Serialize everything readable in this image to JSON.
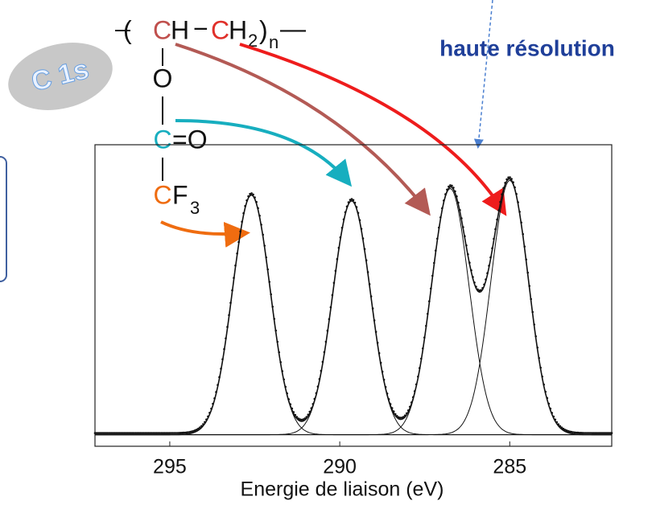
{
  "chart_data": {
    "type": "xps",
    "xlabel": "Energie de liaison (eV)",
    "xlim": [
      297.2,
      282
    ],
    "xticks": [
      295,
      290,
      285
    ],
    "ylim": [
      -4,
      100
    ],
    "peaks": {
      "centers": [
        292.6,
        289.65,
        286.75,
        285.0
      ],
      "heights": [
        82.7,
        80.7,
        84.9,
        87.7
      ],
      "fwhm": [
        1.3,
        1.3,
        1.3,
        1.3
      ]
    },
    "line_color": "#111111",
    "badge": "C 1s",
    "note": "haute résolution",
    "formula": {
      "open": "(",
      "c1": "C",
      "h1": "H",
      "dash": "−",
      "c2": "C",
      "h2": "H",
      "sub2": "2",
      "close": ")",
      "subn": "n",
      "end": "—",
      "o": "O",
      "c3": "C",
      "dbl": "=O",
      "c4": "C",
      "f": "F",
      "sub3": "3"
    }
  }
}
